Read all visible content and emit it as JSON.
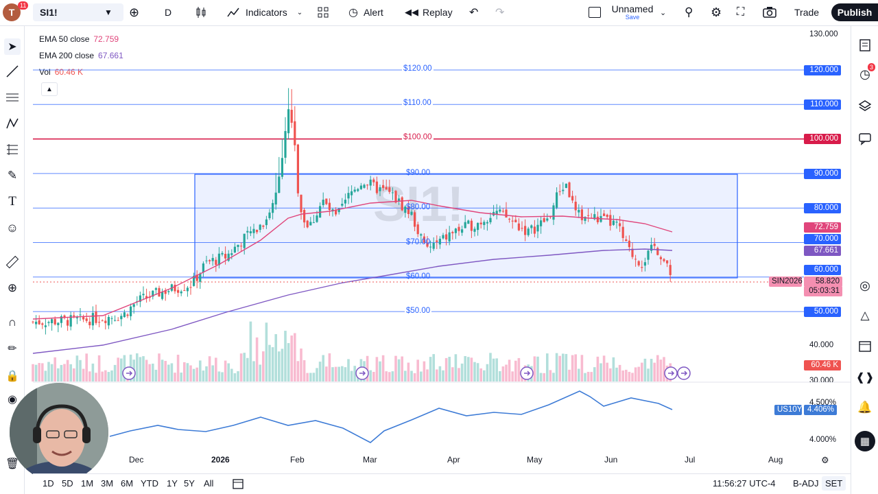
{
  "topbar": {
    "avatar_letter": "T",
    "notif_count": "11",
    "symbol": "SI1!",
    "interval": "D",
    "indicators_label": "Indicators",
    "alert_label": "Alert",
    "replay_label": "Replay",
    "layout_name": "Unnamed",
    "save_label": "Save",
    "trade_label": "Trade",
    "publish_label": "Publish"
  },
  "legend": {
    "ema50_label": "EMA 50 close",
    "ema50_value": "72.759",
    "ema200_label": "EMA 200 close",
    "ema200_value": "67.661",
    "vol_label": "Vol",
    "vol_value": "60.46 K"
  },
  "watermark": "SI1!",
  "price_axis": {
    "ticks": [
      "130.000",
      "40.000",
      "30.000"
    ],
    "line_labels": [
      {
        "text": "120.000",
        "price": 120
      },
      {
        "text": "110.000",
        "price": 110
      },
      {
        "text": "100.000",
        "price": 100,
        "color": "#d81b4a"
      },
      {
        "text": "90.000",
        "price": 90
      },
      {
        "text": "80.000",
        "price": 80
      },
      {
        "text": "70.000",
        "price": 70
      },
      {
        "text": "60.000",
        "price": 60
      },
      {
        "text": "50.000",
        "price": 50
      }
    ],
    "ema50_tag": "72.759",
    "ema200_tag": "67.661",
    "last_price": "58.820",
    "countdown": "05:03:31",
    "contract": "SIN2026",
    "vol_tag": "60.46 K",
    "us10y_symbol": "US10Y",
    "us10y_value": "4.406%",
    "yield_ticks": [
      "4.500%",
      "4.000%"
    ]
  },
  "level_labels": [
    "$120.00",
    "$110.00",
    "$100.00",
    "$90.00",
    "$80.00",
    "$70.00",
    "$60.00",
    "$50.00"
  ],
  "time_axis": [
    "Dec",
    "2026",
    "Feb",
    "Mar",
    "Apr",
    "May",
    "Jun",
    "Jul",
    "Aug"
  ],
  "bottombar": {
    "ranges": [
      "1D",
      "5D",
      "1M",
      "3M",
      "6M",
      "YTD",
      "1Y",
      "5Y",
      "All"
    ],
    "clock": "11:56:27 UTC-4",
    "badj": "B-ADJ",
    "set": "SET"
  },
  "rightbar": {
    "alerts_badge": "3"
  },
  "colors": {
    "accent": "#2962ff",
    "red_level": "#d81b4a",
    "ema50": "#e0457b",
    "ema200": "#7e57c2",
    "up": "#26a69a",
    "down": "#ef5350",
    "vol_up": "#b2dfdb",
    "vol_down": "#f8bbd0",
    "us10y": "#3d7bd6"
  }
}
